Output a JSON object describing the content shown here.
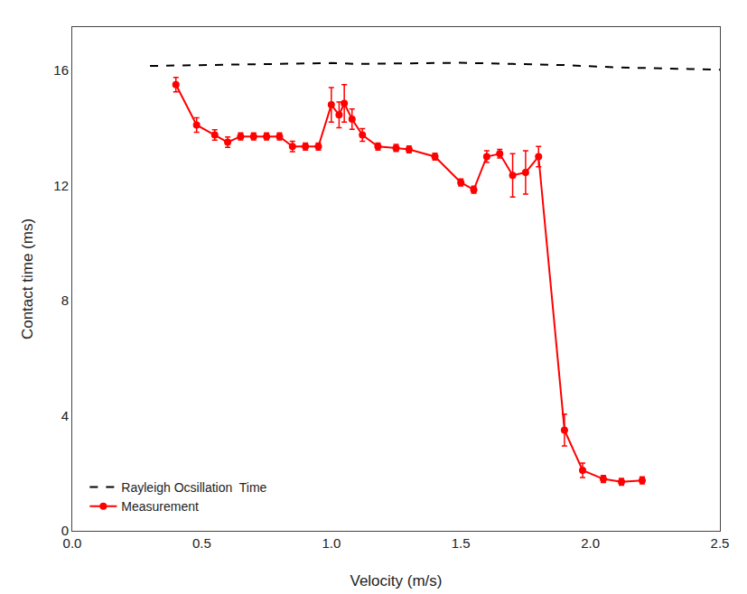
{
  "chart_data": {
    "type": "line",
    "xlabel": "Velocity (m/s)",
    "ylabel": "Contact time (ms)",
    "xlim": [
      0.0,
      2.5
    ],
    "ylim": [
      0.0,
      17.5
    ],
    "xticks": [
      {
        "value": 0,
        "label": "0.0"
      },
      0.5,
      {
        "value": 1,
        "label": "1.0"
      },
      1.5,
      {
        "value": 2,
        "label": "2.0"
      },
      2.5
    ],
    "yticks": [
      0,
      4,
      8,
      12,
      16
    ],
    "grid": false,
    "legend": "lower left",
    "series": [
      {
        "name": "Rayleigh Ocsillation  Time",
        "color": "#000000",
        "line_style": "dashed",
        "x": [
          0.3,
          0.5,
          0.7,
          0.9,
          1.0,
          1.1,
          1.3,
          1.5,
          1.7,
          1.9,
          2.1,
          2.3,
          2.5
        ],
        "values": [
          16.15,
          16.18,
          16.2,
          16.22,
          16.25,
          16.22,
          16.24,
          16.26,
          16.22,
          16.18,
          16.1,
          16.05,
          16.02
        ]
      },
      {
        "name": "Measurement",
        "color": "#ff0000",
        "line_style": "solid",
        "marker": "circle",
        "x": [
          0.4,
          0.48,
          0.55,
          0.6,
          0.65,
          0.7,
          0.75,
          0.8,
          0.85,
          0.9,
          0.95,
          1.0,
          1.03,
          1.05,
          1.08,
          1.12,
          1.18,
          1.25,
          1.3,
          1.4,
          1.5,
          1.55,
          1.6,
          1.65,
          1.7,
          1.75,
          1.8,
          1.9,
          1.97,
          2.05,
          2.12,
          2.2
        ],
        "values": [
          15.5,
          14.1,
          13.75,
          13.5,
          13.7,
          13.7,
          13.7,
          13.7,
          13.35,
          13.35,
          13.35,
          14.8,
          14.45,
          14.85,
          14.3,
          13.75,
          13.35,
          13.3,
          13.25,
          13.0,
          12.1,
          11.85,
          13.0,
          13.1,
          12.35,
          12.45,
          13.0,
          3.5,
          2.1,
          1.8,
          1.7,
          1.75
        ],
        "error": [
          0.25,
          0.25,
          0.18,
          0.18,
          0.12,
          0.12,
          0.12,
          0.12,
          0.18,
          0.12,
          0.12,
          0.6,
          0.45,
          0.65,
          0.35,
          0.22,
          0.12,
          0.12,
          0.12,
          0.12,
          0.12,
          0.12,
          0.2,
          0.15,
          0.75,
          0.75,
          0.35,
          0.55,
          0.25,
          0.12,
          0.12,
          0.12
        ]
      }
    ]
  }
}
